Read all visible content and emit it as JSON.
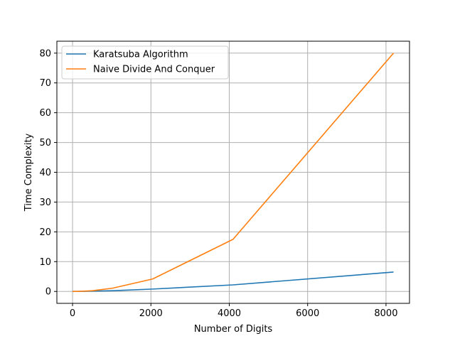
{
  "chart_data": {
    "type": "line",
    "title": "",
    "xlabel": "Number of Digits",
    "ylabel": "Time Complexity",
    "xlim": [
      -400,
      8600
    ],
    "ylim": [
      -4,
      84
    ],
    "xticks": [
      0,
      2000,
      4000,
      6000,
      8000
    ],
    "yticks": [
      0,
      10,
      20,
      30,
      40,
      50,
      60,
      70,
      80
    ],
    "xtick_labels": [
      "0",
      "2000",
      "4000",
      "6000",
      "8000"
    ],
    "ytick_labels": [
      "0",
      "10",
      "20",
      "30",
      "40",
      "50",
      "60",
      "70",
      "80"
    ],
    "grid": true,
    "legend_position": "top-left",
    "series": [
      {
        "name": "Karatsuba Algorithm",
        "color": "#1f77b4",
        "x": [
          1,
          2,
          4,
          8,
          16,
          32,
          64,
          128,
          256,
          512,
          1024,
          2048,
          4096,
          8192
        ],
        "y": [
          0.0,
          0.0,
          0.0,
          0.0,
          0.0,
          0.0,
          0.0,
          0.02,
          0.05,
          0.11,
          0.25,
          0.8,
          2.2,
          6.5
        ]
      },
      {
        "name": "Naive Divide And Conquer",
        "color": "#ff7f0e",
        "x": [
          1,
          2,
          4,
          8,
          16,
          32,
          64,
          128,
          256,
          512,
          1024,
          2048,
          4096,
          8192
        ],
        "y": [
          0.0,
          0.0,
          0.0,
          0.0,
          0.0,
          0.0,
          0.0,
          0.02,
          0.06,
          0.25,
          1.1,
          4.2,
          17.5,
          80.0
        ]
      }
    ]
  }
}
